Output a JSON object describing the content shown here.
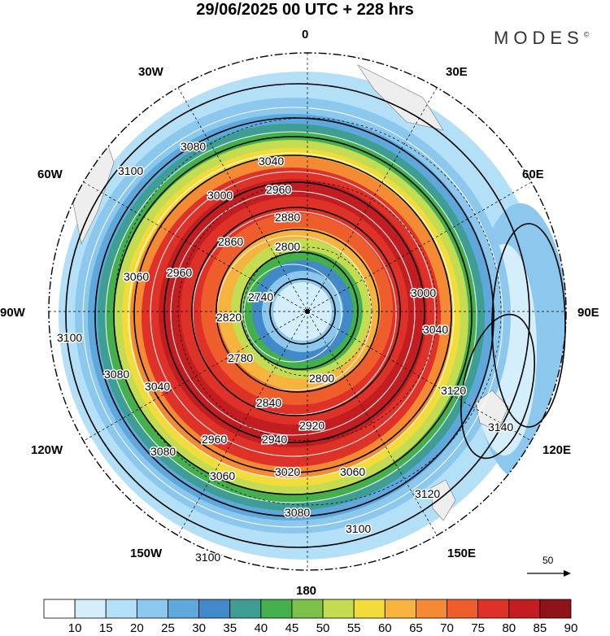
{
  "header": {
    "title": "29/06/2025  00 UTC  + 228 hrs",
    "brand": "MODES"
  },
  "longitudes": {
    "top": "0",
    "top_right": "30E",
    "right_upper": "60E",
    "right": "90E",
    "right_lower": "120E",
    "bottom_right": "150E",
    "bottom": "180",
    "bottom_left": "150W",
    "left_lower": "120W",
    "left": "90W",
    "left_upper": "60W",
    "top_left": "30W"
  },
  "contours": {
    "c3100a": "3100",
    "c3100b": "3100",
    "c3100c": "3100",
    "c3100d": "3100",
    "c3080a": "3080",
    "c3080b": "3080",
    "c3080c": "3080",
    "c3080d": "3080",
    "c3060a": "3060",
    "c3060b": "3060",
    "c3060c": "3060",
    "c3040a": "3040",
    "c3040b": "3040",
    "c3040c": "3040",
    "c3020": "3020",
    "c3000a": "3000",
    "c3000b": "3000",
    "c2960a": "2960",
    "c2960b": "2960",
    "c2960c": "2960",
    "c2940": "2940",
    "c2920": "2920",
    "c2880": "2880",
    "c2860": "2860",
    "c2840": "2840",
    "c2820": "2820",
    "c2800a": "2800",
    "c2800b": "2800",
    "c2780": "2780",
    "c2740": "2740",
    "c3120a": "3120",
    "c3120b": "3120",
    "c3140": "3140"
  },
  "reference_vector": {
    "label": "50"
  },
  "colorbar": {
    "labels": [
      "10",
      "15",
      "20",
      "25",
      "30",
      "35",
      "40",
      "45",
      "50",
      "55",
      "60",
      "65",
      "70",
      "75",
      "80",
      "85",
      "90"
    ],
    "colors": [
      "#ffffff",
      "#d4eefc",
      "#b3e0f7",
      "#8cc8ee",
      "#5fa8dc",
      "#4189c8",
      "#3e9e94",
      "#44b04c",
      "#7cc24a",
      "#c4dc52",
      "#f2dc3c",
      "#f6b33e",
      "#f48a34",
      "#ee5e2c",
      "#de3228",
      "#c21e22",
      "#8e1418"
    ]
  }
}
